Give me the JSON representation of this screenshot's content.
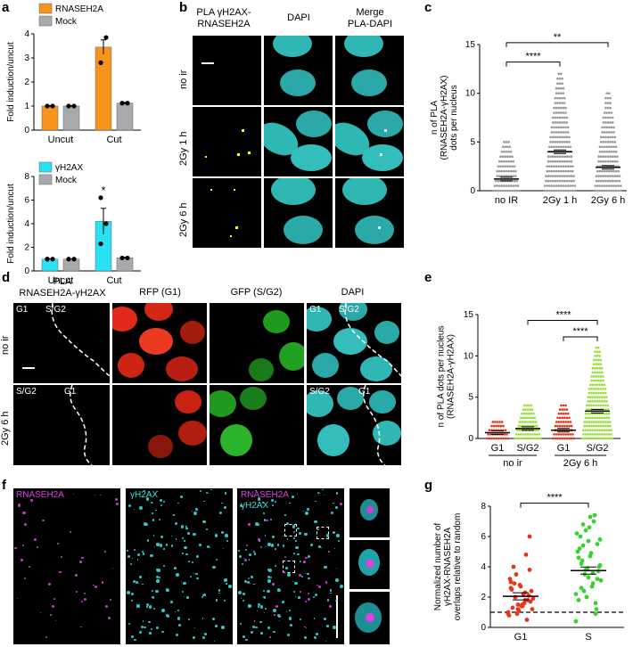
{
  "panels": {
    "a": {
      "label": "a",
      "charts": [
        {
          "type": "bar",
          "ylabel": "Fold induction/uncut",
          "categories": [
            "Uncut",
            "Cut"
          ],
          "ylim": [
            0,
            4
          ],
          "yticks": [
            "0",
            "1",
            "2",
            "3",
            "4"
          ],
          "series": [
            {
              "name": "RNASEH2A",
              "color": "#f7941d",
              "values": [
                1.0,
                3.45
              ],
              "error": [
                0.02,
                0.3
              ],
              "points": [
                [
                  1.0,
                  1.0
                ],
                [
                  2.8,
                  3.85
                ]
              ]
            },
            {
              "name": "Mock",
              "color": "#a7a9ac",
              "values": [
                1.0,
                1.12
              ],
              "error": [
                0.02,
                0.03
              ],
              "points": [
                [
                  1.0,
                  1.0
                ],
                [
                  1.12,
                  1.12
                ]
              ]
            }
          ]
        },
        {
          "type": "bar",
          "ylabel": "Fold induction/uncut",
          "categories": [
            "Uncut",
            "Cut"
          ],
          "ylim": [
            0,
            8
          ],
          "yticks": [
            "0",
            "2",
            "4",
            "6",
            "8"
          ],
          "annotation": "*",
          "series": [
            {
              "name": "γH2AX",
              "color": "#29e1f2",
              "values": [
                1.0,
                4.2
              ],
              "error": [
                0.02,
                1.1
              ],
              "points": [
                [
                  1.0,
                  1.0,
                  1.0
                ],
                [
                  6.2,
                  4.0,
                  2.3
                ]
              ]
            },
            {
              "name": "Mock",
              "color": "#a7a9ac",
              "values": [
                1.0,
                1.1
              ],
              "error": [
                0.02,
                0.05
              ],
              "points": [
                [
                  1.0,
                  1.0
                ],
                [
                  1.1,
                  1.1
                ]
              ]
            }
          ]
        }
      ]
    },
    "b": {
      "label": "b",
      "col_headers": [
        "PLA γH2AX-\nRNASEH2A",
        "DAPI",
        "Merge\nPLA-DAPI"
      ],
      "row_labels": [
        "no ir",
        "2Gy 1 h",
        "2Gy 6 h"
      ]
    },
    "c": {
      "label": "c",
      "ylabel": "n of PLA\n(RNASEH2A-γH2AX)\ndots per nucleus",
      "yticks": [
        "0",
        "5",
        "10",
        "15"
      ],
      "sig": [
        "****",
        "**"
      ]
    },
    "d": {
      "label": "d",
      "col_headers": [
        "PLA\nRNASEH2A-γH2AX",
        "RFP (G1)",
        "GFP (S/G2)",
        "DAPI"
      ],
      "row_labels": [
        "no ir",
        "2Gy 6 h"
      ],
      "inset_top": [
        "G1",
        "S/G2"
      ],
      "inset_bottom": [
        "S/G2",
        "G1"
      ]
    },
    "e": {
      "label": "e",
      "ylabel": "n of PLA dots per nucleus\n(RNASEH2A-γH2AX)",
      "yticks": [
        "0",
        "5",
        "10",
        "15"
      ],
      "sig": [
        "****",
        "****"
      ],
      "group_labels": [
        "no ir",
        "2Gy 6 h"
      ]
    },
    "f": {
      "label": "f",
      "labels": [
        "RNASEH2A",
        "γH2AX",
        "RNASEH2A",
        "γH2AX"
      ]
    },
    "g": {
      "label": "g",
      "ylabel": "Normalized number of\nγH2AX-RNASEH2A\noverlaps relative to random",
      "yticks": [
        "0",
        "2",
        "4",
        "6",
        "8"
      ],
      "sig": [
        "****"
      ]
    }
  },
  "chart_data": [
    {
      "type": "scatter",
      "title": "",
      "ylabel": "n of PLA (RNASEH2A-γH2AX) dots per nucleus",
      "categories": [
        "no IR",
        "2Gy 1 h",
        "2Gy 6 h"
      ],
      "ylim": [
        0,
        15
      ],
      "means": [
        1.2,
        4.0,
        2.4
      ],
      "max_values": [
        5,
        12,
        10
      ],
      "color": "#999999"
    },
    {
      "type": "scatter",
      "ylabel": "n of PLA dots per nucleus (RNASEH2A-γH2AX)",
      "categories": [
        "G1",
        "S/G2",
        "G1",
        "S/G2"
      ],
      "ylim": [
        0,
        15
      ],
      "means": [
        0.7,
        1.2,
        1.0,
        3.3
      ],
      "max_values": [
        2,
        4,
        4,
        11
      ],
      "colors": [
        "#e8341c",
        "#99e03a",
        "#e8341c",
        "#99e03a"
      ]
    },
    {
      "type": "scatter",
      "ylabel": "Normalized number of γH2AX-RNASEH2A overlaps relative to random",
      "categories": [
        "G1",
        "S"
      ],
      "ylim": [
        0,
        8
      ],
      "means": [
        2.05,
        3.75
      ],
      "reference_line": 1,
      "colors": [
        "#e8341c",
        "#38d12f"
      ]
    }
  ]
}
